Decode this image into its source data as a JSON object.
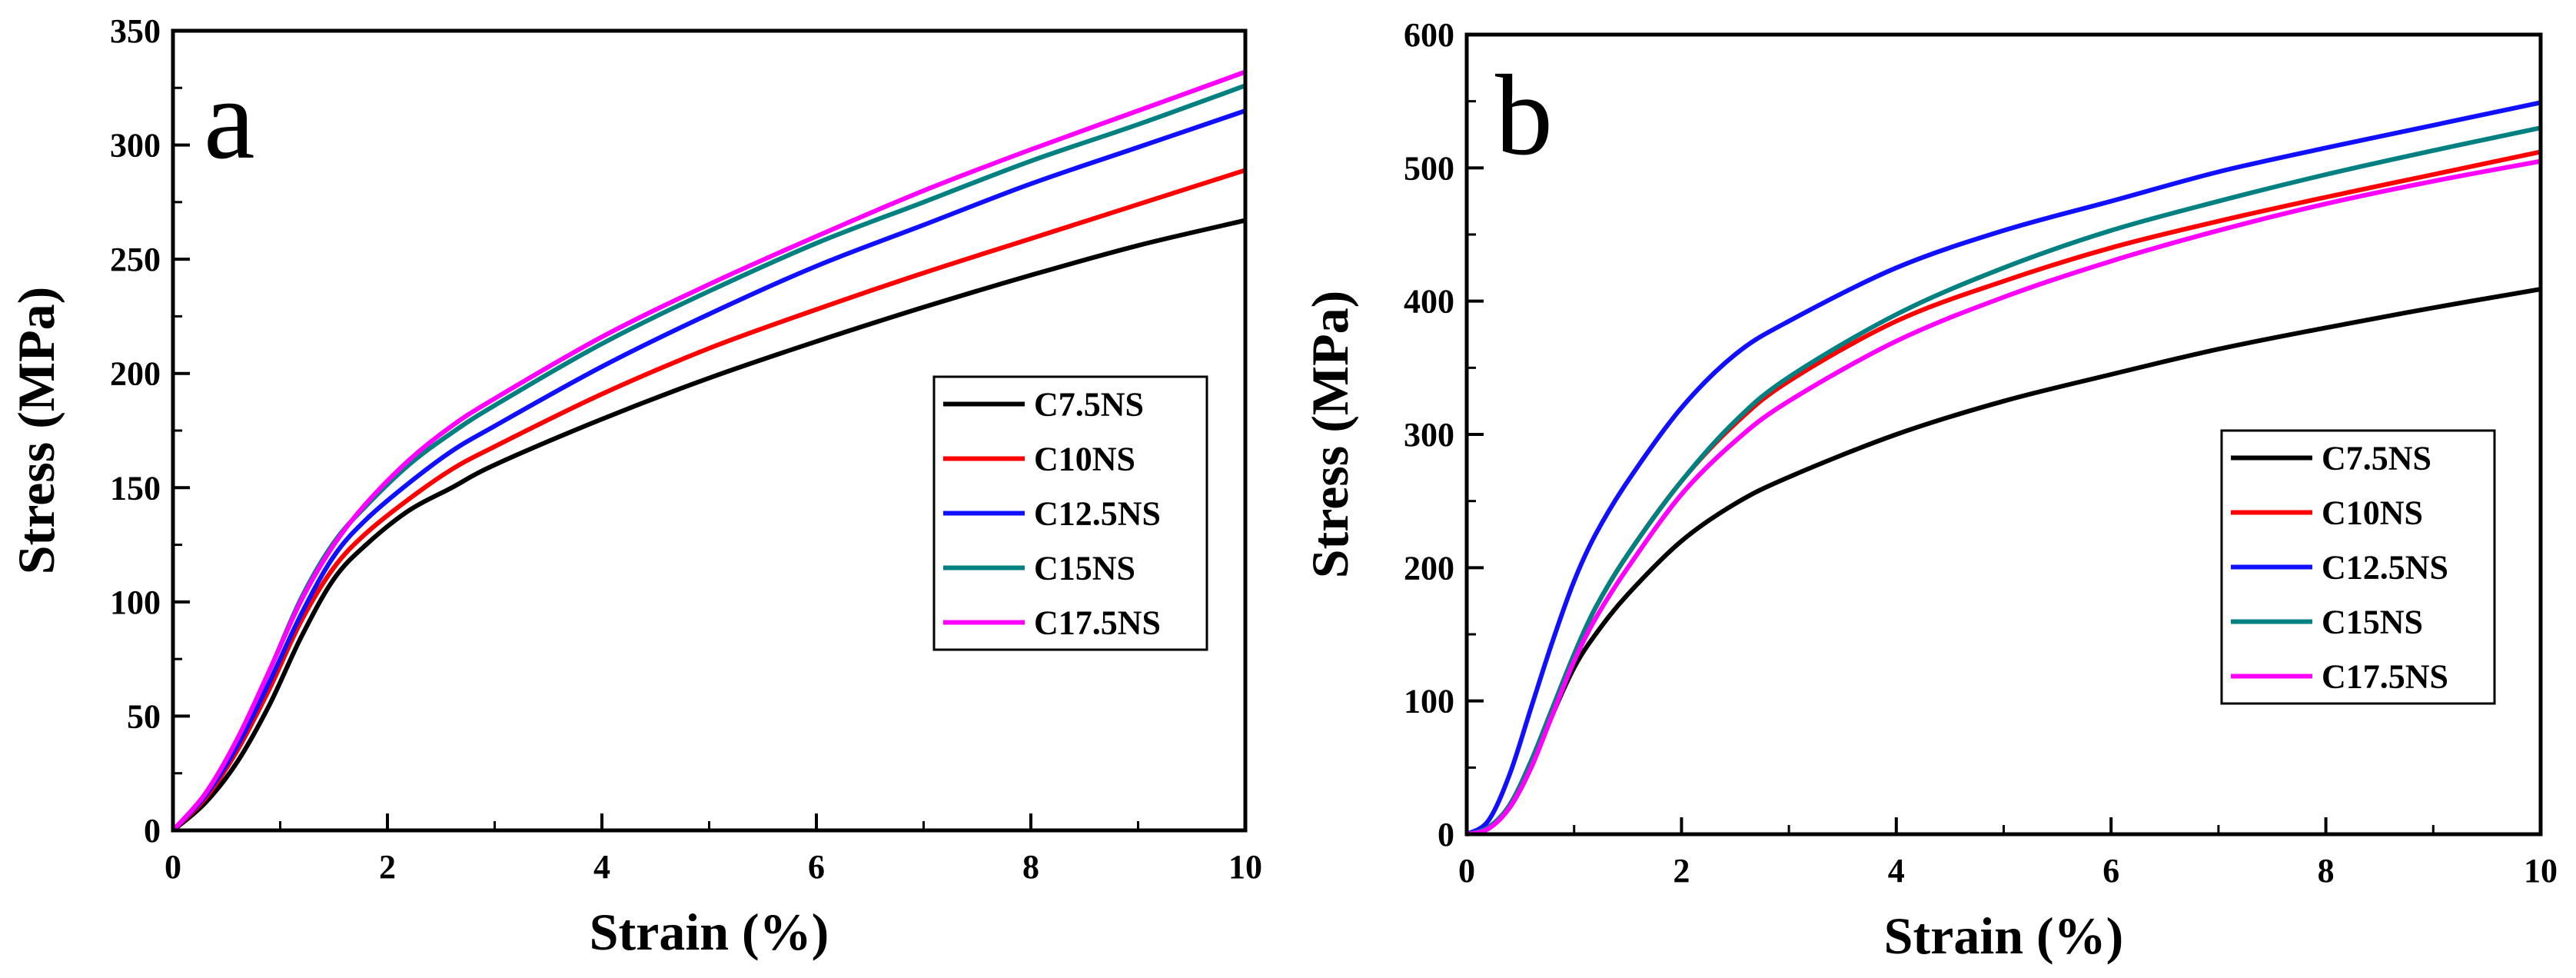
{
  "chart_data": [
    {
      "type": "line",
      "panel_label": "a",
      "xlabel": "Strain (%)",
      "ylabel": "Stress (MPa)",
      "xlim": [
        0,
        10
      ],
      "ylim": [
        0,
        350
      ],
      "xticks": [
        0,
        2,
        4,
        6,
        8,
        10
      ],
      "yticks": [
        0,
        50,
        100,
        150,
        200,
        250,
        300,
        350
      ],
      "legend_position": "center-right",
      "series": [
        {
          "name": "C7.5NS",
          "color": "#000000",
          "x": [
            0,
            0.3,
            0.6,
            0.9,
            1.2,
            1.5,
            1.8,
            2.2,
            2.6,
            3,
            4,
            5,
            6,
            7,
            8,
            9,
            10
          ],
          "y": [
            0,
            12,
            30,
            55,
            85,
            110,
            125,
            140,
            150,
            160,
            180,
            198,
            214,
            229,
            243,
            256,
            267
          ]
        },
        {
          "name": "C10NS",
          "color": "#ff0000",
          "x": [
            0,
            0.3,
            0.6,
            0.9,
            1.2,
            1.5,
            1.8,
            2.2,
            2.6,
            3,
            4,
            5,
            6,
            7,
            8,
            9,
            10
          ],
          "y": [
            0,
            14,
            35,
            62,
            92,
            115,
            130,
            145,
            158,
            168,
            191,
            211,
            228,
            244,
            259,
            274,
            289
          ]
        },
        {
          "name": "C12.5NS",
          "color": "#1010ff",
          "x": [
            0,
            0.3,
            0.6,
            0.9,
            1.2,
            1.5,
            1.8,
            2.2,
            2.6,
            3,
            4,
            5,
            6,
            7,
            8,
            9,
            10
          ],
          "y": [
            0,
            15,
            37,
            65,
            95,
            120,
            136,
            152,
            166,
            177,
            203,
            226,
            247,
            265,
            283,
            299,
            315
          ]
        },
        {
          "name": "C15NS",
          "color": "#008080",
          "x": [
            0,
            0.3,
            0.6,
            0.9,
            1.2,
            1.5,
            1.8,
            2.2,
            2.6,
            3,
            4,
            5,
            6,
            7,
            8,
            9,
            10
          ],
          "y": [
            0,
            16,
            40,
            70,
            102,
            126,
            142,
            160,
            174,
            186,
            213,
            236,
            257,
            275,
            293,
            309,
            326
          ]
        },
        {
          "name": "C17.5NS",
          "color": "#ff00ff",
          "x": [
            0,
            0.3,
            0.6,
            0.9,
            1.2,
            1.5,
            1.8,
            2.2,
            2.6,
            3,
            4,
            5,
            6,
            7,
            8,
            9,
            10
          ],
          "y": [
            0,
            16,
            40,
            70,
            101,
            125,
            143,
            162,
            177,
            189,
            216,
            239,
            260,
            280,
            298,
            315,
            332
          ]
        }
      ]
    },
    {
      "type": "line",
      "panel_label": "b",
      "xlabel": "Strain (%)",
      "ylabel": "Stress (MPa)",
      "xlim": [
        0,
        10
      ],
      "ylim": [
        0,
        600
      ],
      "xticks": [
        0,
        2,
        4,
        6,
        8,
        10
      ],
      "yticks": [
        0,
        100,
        200,
        300,
        400,
        500,
        600
      ],
      "legend_position": "bottom-right",
      "series": [
        {
          "name": "C7.5NS",
          "color": "#000000",
          "x": [
            0,
            0.2,
            0.4,
            0.6,
            0.8,
            1,
            1.2,
            1.5,
            2,
            2.5,
            3,
            4,
            5,
            6,
            7,
            8,
            9,
            10
          ],
          "y": [
            0,
            5,
            20,
            50,
            90,
            125,
            150,
            180,
            220,
            248,
            268,
            300,
            325,
            345,
            364,
            380,
            395,
            409
          ]
        },
        {
          "name": "C10NS",
          "color": "#ff0000",
          "x": [
            0,
            0.2,
            0.4,
            0.6,
            0.8,
            1,
            1.2,
            1.5,
            2,
            2.5,
            3,
            4,
            5,
            6,
            7,
            8,
            9,
            10
          ],
          "y": [
            0,
            5,
            22,
            55,
            95,
            135,
            170,
            210,
            265,
            308,
            340,
            385,
            415,
            440,
            460,
            478,
            495,
            512
          ]
        },
        {
          "name": "C12.5NS",
          "color": "#1010ff",
          "x": [
            0,
            0.2,
            0.4,
            0.6,
            0.8,
            1,
            1.2,
            1.5,
            2,
            2.5,
            3,
            4,
            5,
            6,
            7,
            8,
            9,
            10
          ],
          "y": [
            0,
            10,
            45,
            95,
            145,
            190,
            225,
            265,
            320,
            360,
            385,
            425,
            453,
            475,
            497,
            515,
            532,
            549
          ]
        },
        {
          "name": "C15NS",
          "color": "#008080",
          "x": [
            0,
            0.2,
            0.4,
            0.6,
            0.8,
            1,
            1.2,
            1.5,
            2,
            2.5,
            3,
            4,
            5,
            6,
            7,
            8,
            9,
            10
          ],
          "y": [
            0,
            5,
            22,
            55,
            95,
            135,
            170,
            210,
            265,
            310,
            343,
            390,
            425,
            453,
            475,
            495,
            513,
            530
          ]
        },
        {
          "name": "C17.5NS",
          "color": "#ff00ff",
          "x": [
            0,
            0.2,
            0.4,
            0.6,
            0.8,
            1,
            1.2,
            1.5,
            2,
            2.5,
            3,
            4,
            5,
            6,
            7,
            8,
            9,
            10
          ],
          "y": [
            0,
            4,
            20,
            50,
            90,
            130,
            162,
            200,
            255,
            295,
            325,
            370,
            403,
            430,
            453,
            473,
            490,
            505
          ]
        }
      ]
    }
  ]
}
